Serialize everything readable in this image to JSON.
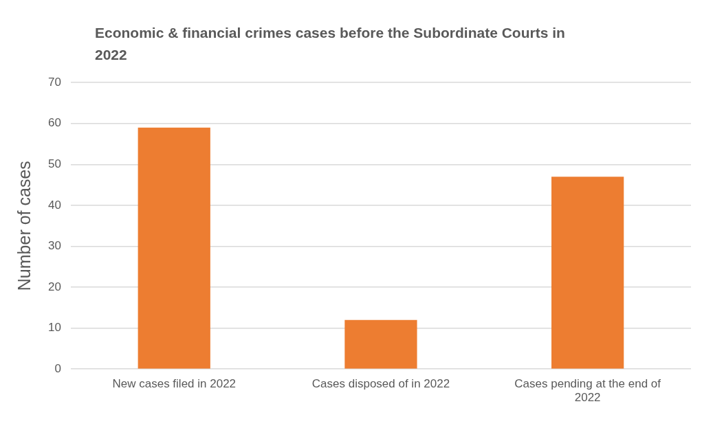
{
  "chart_data": {
    "type": "bar",
    "title": "Economic & financial crimes cases before the Subordinate Courts in 2022",
    "ylabel": "Number of cases",
    "categories": [
      "New cases filed in 2022",
      "Cases disposed of in 2022",
      "Cases pending at the end of 2022"
    ],
    "values": [
      59,
      12,
      47
    ],
    "color": "#ed7d31",
    "ylim": [
      0,
      70
    ],
    "yticks": [
      0,
      10,
      20,
      30,
      40,
      50,
      60,
      70
    ],
    "grid": "y",
    "legend": false
  }
}
